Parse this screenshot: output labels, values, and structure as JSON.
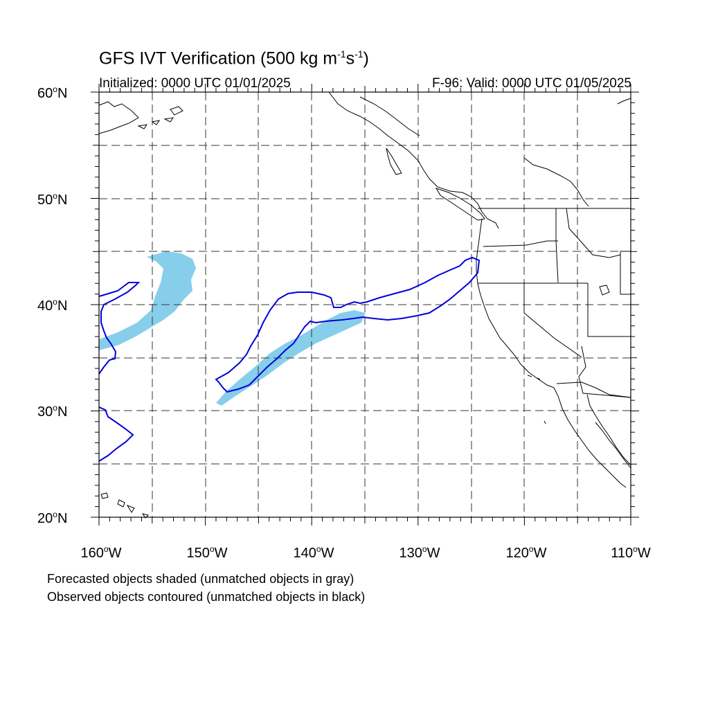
{
  "header": {
    "title_prefix": "GFS IVT Verification (500 kg m",
    "title_exp1": "-1",
    "title_mid": "s",
    "title_exp2": "-1",
    "title_suffix": ")",
    "initialized": "Initialized: 0000 UTC 01/01/2025",
    "valid": "F-96: Valid: 0000 UTC 01/05/2025"
  },
  "axes": {
    "lat_labels": [
      {
        "value": "60",
        "suffix": "N"
      },
      {
        "value": "50",
        "suffix": "N"
      },
      {
        "value": "40",
        "suffix": "N"
      },
      {
        "value": "30",
        "suffix": "N"
      },
      {
        "value": "20",
        "suffix": "N"
      }
    ],
    "lon_labels": [
      {
        "value": "160",
        "suffix": "W"
      },
      {
        "value": "150",
        "suffix": "W"
      },
      {
        "value": "140",
        "suffix": "W"
      },
      {
        "value": "130",
        "suffix": "W"
      },
      {
        "value": "120",
        "suffix": "W"
      },
      {
        "value": "110",
        "suffix": "W"
      }
    ],
    "degree_symbol": "o",
    "lon_range": [
      -160,
      -110
    ],
    "lat_range": [
      20,
      60
    ],
    "gridlines": "dashed every 5 degrees"
  },
  "legend": {
    "line1": "Forecasted objects shaded (unmatched objects in gray)",
    "line2": "Observed objects contoured (unmatched objects in black)"
  },
  "colors": {
    "forecast_fill": "#87ceeb",
    "observed_contour": "#0000dd",
    "coastline": "#000000",
    "grid": "#333333"
  }
}
